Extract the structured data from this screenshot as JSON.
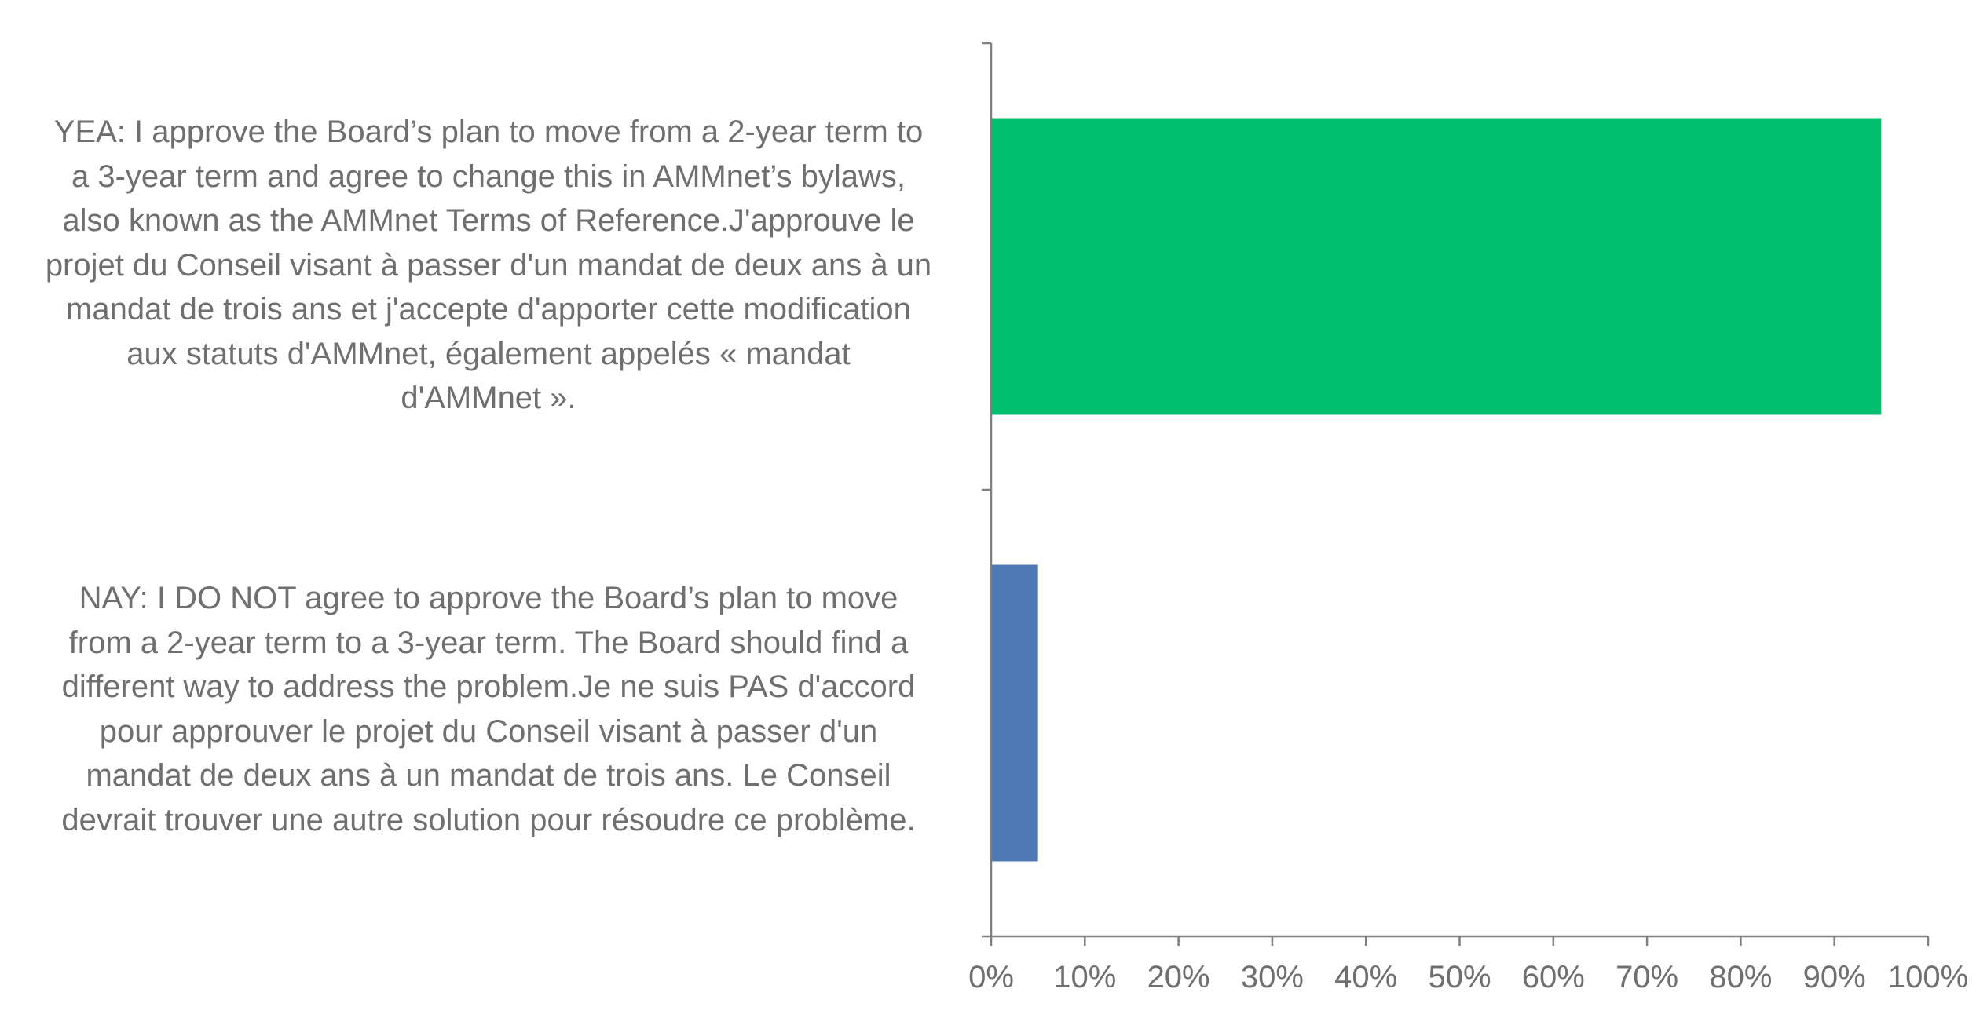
{
  "chart_data": {
    "type": "bar",
    "orientation": "horizontal",
    "title": "",
    "xlabel": "",
    "ylabel": "",
    "xlim": [
      0,
      1
    ],
    "x_tick_labels": [
      "0%",
      "10%",
      "20%",
      "30%",
      "40%",
      "50%",
      "60%",
      "70%",
      "80%",
      "90%",
      "100%"
    ],
    "grid": false,
    "legend": "none",
    "categories": [
      {
        "label": "YEA: I approve the Board’s plan to move from a 2-year term to a 3-year term and agree to change this in AMMnet’s bylaws, also known as the AMMnet Terms of Reference.J'approuve le projet du Conseil visant à passer d'un mandat de deux ans à un mandat de trois ans et j'accepte d'apporter cette modification aux statuts d'AMMnet, également appelés « mandat d'AMMnet ».",
        "label_lines": [
          "YEA: I approve the Board’s plan to move from a 2-year term to",
          "a 3-year term and agree to change this in AMMnet’s bylaws,",
          "also known as the AMMnet Terms of Reference.J'approuve le",
          "projet du Conseil visant à passer d'un mandat de deux ans à un",
          "mandat de trois ans et j'accepte d'apporter cette modification",
          "aux statuts d'AMMnet, également appelés « mandat",
          "d'AMMnet »."
        ],
        "value": 0.95,
        "color": "#00c06f"
      },
      {
        "label": "NAY: I DO NOT agree to approve the Board’s plan to move from a 2-year term to a 3-year term. The Board should find a different way to address the problem.Je ne suis PAS d'accord pour approuver le projet du Conseil visant à passer d'un mandat de deux ans à un mandat de trois ans. Le Conseil devrait trouver une autre solution pour résoudre ce problème.",
        "label_lines": [
          "NAY: I DO NOT agree to approve the Board’s plan to move",
          "from a 2-year term to a 3-year term. The Board should find a",
          "different way to address the problem.Je ne suis PAS d'accord",
          "pour approuver le projet du Conseil visant à passer d'un",
          "mandat de deux ans à un mandat de trois ans. Le Conseil",
          "devrait trouver une autre solution pour résoudre ce problème."
        ],
        "value": 0.05,
        "color": "#4e79b4"
      }
    ],
    "colors": {
      "axis": "#7f7f7f",
      "text": "#6f6f6f"
    }
  }
}
